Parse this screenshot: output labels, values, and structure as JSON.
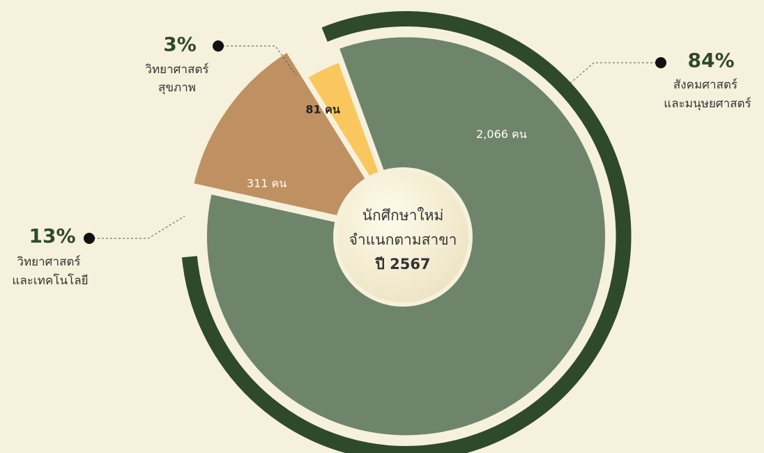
{
  "chart_data": {
    "type": "pie",
    "title": [
      "นักศึกษาใหม่",
      "จำแนกตามสาขา",
      "ปี 2567"
    ],
    "categories": [
      [
        "สังคมศาสตร์",
        "และมนุษยศาสตร์"
      ],
      [
        "วิทยาศาสตร์",
        "และเทคโนโลยี"
      ],
      [
        "วิทยาศาสตร์",
        "สุขภาพ"
      ]
    ],
    "values": [
      2066,
      311,
      81
    ],
    "value_labels": [
      "2,066 คน",
      "311 คน",
      "81 คน"
    ],
    "percentages": [
      84,
      13,
      3
    ],
    "percent_labels": [
      "84%",
      "13%",
      "3%"
    ],
    "colors": [
      "#6f856b",
      "#bf9162",
      "#f9c75d"
    ]
  }
}
